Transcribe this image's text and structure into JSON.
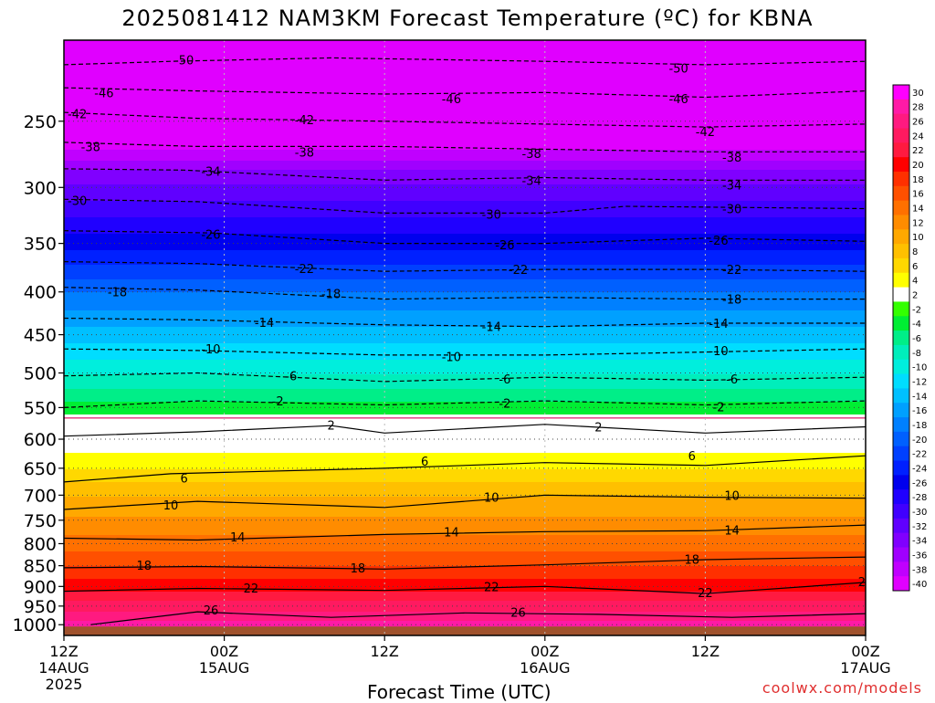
{
  "title": "2025081412 NAM3KM Forecast Temperature (ºC) for KBNA",
  "credit": "coolwx.com/models",
  "chart_data": {
    "type": "heatmap",
    "title": "2025081412 NAM3KM Forecast Temperature (ºC) for KBNA",
    "xlabel": "Forecast Time (UTC)",
    "ylabel": "",
    "y_scale": "log-pressure",
    "ylim": [
      1030,
      200
    ],
    "x_hours": [
      0,
      60
    ],
    "x_ticks": [
      {
        "hour": 0,
        "label": "12Z",
        "sub": "14AUG",
        "sub2": "2025"
      },
      {
        "hour": 12,
        "label": "00Z",
        "sub": "15AUG",
        "sub2": ""
      },
      {
        "hour": 24,
        "label": "12Z",
        "sub": "",
        "sub2": ""
      },
      {
        "hour": 36,
        "label": "00Z",
        "sub": "16AUG",
        "sub2": ""
      },
      {
        "hour": 48,
        "label": "12Z",
        "sub": "",
        "sub2": ""
      },
      {
        "hour": 60,
        "label": "00Z",
        "sub": "17AUG",
        "sub2": ""
      }
    ],
    "y_ticks": [
      250,
      300,
      350,
      400,
      450,
      500,
      550,
      600,
      650,
      700,
      750,
      800,
      850,
      900,
      950,
      1000
    ],
    "ground_pressure": 1005,
    "temperature_profile": [
      {
        "p": 200,
        "t": -55
      },
      {
        "p": 220,
        "t": -50
      },
      {
        "p": 240,
        "t": -46
      },
      {
        "p": 250,
        "t": -42
      },
      {
        "p": 270,
        "t": -38
      },
      {
        "p": 285,
        "t": -34
      },
      {
        "p": 310,
        "t": -30
      },
      {
        "p": 340,
        "t": -26
      },
      {
        "p": 370,
        "t": -22
      },
      {
        "p": 400,
        "t": -18
      },
      {
        "p": 440,
        "t": -14
      },
      {
        "p": 480,
        "t": -10
      },
      {
        "p": 520,
        "t": -6
      },
      {
        "p": 560,
        "t": -2
      },
      {
        "p": 590,
        "t": 2
      },
      {
        "p": 650,
        "t": 6
      },
      {
        "p": 700,
        "t": 10
      },
      {
        "p": 780,
        "t": 14
      },
      {
        "p": 850,
        "t": 18
      },
      {
        "p": 910,
        "t": 22
      },
      {
        "p": 960,
        "t": 26
      },
      {
        "p": 1030,
        "t": 31
      }
    ],
    "isotherms": [
      {
        "t": -50,
        "style": "dashed",
        "points": [
          [
            0,
            214
          ],
          [
            8,
            212
          ],
          [
            20,
            210
          ],
          [
            36,
            212
          ],
          [
            48,
            214
          ],
          [
            60,
            212
          ]
        ],
        "labels": [
          [
            9,
            211
          ],
          [
            46,
            216
          ]
        ]
      },
      {
        "t": -46,
        "style": "dashed",
        "points": [
          [
            0,
            228
          ],
          [
            10,
            230
          ],
          [
            24,
            232
          ],
          [
            36,
            231
          ],
          [
            48,
            234
          ],
          [
            60,
            230
          ]
        ],
        "labels": [
          [
            3,
            231
          ],
          [
            29,
            235
          ],
          [
            46,
            235
          ]
        ]
      },
      {
        "t": -42,
        "style": "dashed",
        "points": [
          [
            0,
            244
          ],
          [
            10,
            248
          ],
          [
            24,
            250
          ],
          [
            36,
            252
          ],
          [
            48,
            254
          ],
          [
            60,
            252
          ]
        ],
        "labels": [
          [
            1,
            245
          ],
          [
            18,
            249
          ],
          [
            48,
            257
          ]
        ]
      },
      {
        "t": -38,
        "style": "dashed",
        "points": [
          [
            0,
            265
          ],
          [
            10,
            268
          ],
          [
            24,
            268
          ],
          [
            36,
            270
          ],
          [
            48,
            272
          ],
          [
            60,
            272
          ]
        ],
        "labels": [
          [
            2,
            268
          ],
          [
            18,
            272
          ],
          [
            35,
            273
          ],
          [
            50,
            276
          ]
        ]
      },
      {
        "t": -34,
        "style": "dashed",
        "points": [
          [
            0,
            285
          ],
          [
            9,
            286
          ],
          [
            24,
            294
          ],
          [
            36,
            292
          ],
          [
            48,
            294
          ],
          [
            60,
            294
          ]
        ],
        "labels": [
          [
            11,
            287
          ],
          [
            35,
            294
          ],
          [
            50,
            298
          ]
        ]
      },
      {
        "t": -30,
        "style": "dashed",
        "points": [
          [
            0,
            310
          ],
          [
            10,
            312
          ],
          [
            24,
            322
          ],
          [
            36,
            322
          ],
          [
            42,
            316
          ],
          [
            60,
            318
          ]
        ],
        "labels": [
          [
            1,
            311
          ],
          [
            32,
            323
          ],
          [
            50,
            318
          ]
        ]
      },
      {
        "t": -26,
        "style": "dashed",
        "points": [
          [
            0,
            338
          ],
          [
            11,
            340
          ],
          [
            24,
            350
          ],
          [
            36,
            350
          ],
          [
            48,
            345
          ],
          [
            60,
            348
          ]
        ],
        "labels": [
          [
            11,
            341
          ],
          [
            33,
            351
          ],
          [
            49,
            347
          ]
        ]
      },
      {
        "t": -22,
        "style": "dashed",
        "points": [
          [
            0,
            368
          ],
          [
            10,
            370
          ],
          [
            24,
            378
          ],
          [
            36,
            376
          ],
          [
            48,
            376
          ],
          [
            60,
            378
          ]
        ],
        "labels": [
          [
            18,
            375
          ],
          [
            34,
            376
          ],
          [
            50,
            376
          ]
        ]
      },
      {
        "t": -18,
        "style": "dashed",
        "points": [
          [
            0,
            395
          ],
          [
            10,
            398
          ],
          [
            24,
            408
          ],
          [
            36,
            406
          ],
          [
            48,
            408
          ],
          [
            60,
            408
          ]
        ],
        "labels": [
          [
            4,
            400
          ],
          [
            20,
            402
          ],
          [
            50,
            408
          ]
        ]
      },
      {
        "t": -14,
        "style": "dashed",
        "points": [
          [
            0,
            430
          ],
          [
            10,
            432
          ],
          [
            24,
            438
          ],
          [
            36,
            440
          ],
          [
            48,
            436
          ],
          [
            60,
            436
          ]
        ],
        "labels": [
          [
            15,
            435
          ],
          [
            32,
            440
          ],
          [
            49,
            436
          ]
        ]
      },
      {
        "t": -10,
        "style": "dashed",
        "points": [
          [
            0,
            468
          ],
          [
            10,
            470
          ],
          [
            24,
            476
          ],
          [
            36,
            476
          ],
          [
            48,
            472
          ],
          [
            60,
            468
          ]
        ],
        "labels": [
          [
            11,
            468
          ],
          [
            29,
            478
          ],
          [
            49,
            470
          ]
        ]
      },
      {
        "t": -6,
        "style": "dashed",
        "points": [
          [
            0,
            504
          ],
          [
            10,
            500
          ],
          [
            24,
            512
          ],
          [
            36,
            506
          ],
          [
            48,
            510
          ],
          [
            60,
            506
          ]
        ],
        "labels": [
          [
            17,
            504
          ],
          [
            33,
            508
          ],
          [
            50,
            508
          ]
        ]
      },
      {
        "t": -2,
        "style": "dashed",
        "points": [
          [
            0,
            550
          ],
          [
            10,
            540
          ],
          [
            24,
            546
          ],
          [
            36,
            540
          ],
          [
            48,
            546
          ],
          [
            60,
            540
          ]
        ],
        "labels": [
          [
            16,
            540
          ],
          [
            33,
            543
          ],
          [
            49,
            549
          ]
        ]
      },
      {
        "t": 2,
        "style": "solid",
        "points": [
          [
            0,
            595
          ],
          [
            10,
            588
          ],
          [
            20,
            578
          ],
          [
            24,
            590
          ],
          [
            36,
            576
          ],
          [
            48,
            590
          ],
          [
            60,
            580
          ]
        ],
        "labels": [
          [
            20,
            577
          ],
          [
            40,
            580
          ]
        ]
      },
      {
        "t": 6,
        "style": "solid",
        "points": [
          [
            0,
            675
          ],
          [
            8,
            660
          ],
          [
            24,
            650
          ],
          [
            36,
            640
          ],
          [
            48,
            645
          ],
          [
            60,
            628
          ]
        ],
        "labels": [
          [
            9,
            668
          ],
          [
            27,
            637
          ],
          [
            47,
            628
          ]
        ]
      },
      {
        "t": 10,
        "style": "solid",
        "points": [
          [
            0,
            728
          ],
          [
            10,
            712
          ],
          [
            24,
            724
          ],
          [
            36,
            700
          ],
          [
            48,
            704
          ],
          [
            60,
            706
          ]
        ],
        "labels": [
          [
            8,
            719
          ],
          [
            32,
            704
          ],
          [
            50,
            700
          ]
        ]
      },
      {
        "t": 14,
        "style": "solid",
        "points": [
          [
            0,
            788
          ],
          [
            10,
            792
          ],
          [
            24,
            780
          ],
          [
            36,
            774
          ],
          [
            48,
            772
          ],
          [
            60,
            760
          ]
        ],
        "labels": [
          [
            13,
            785
          ],
          [
            29,
            774
          ],
          [
            50,
            770
          ]
        ]
      },
      {
        "t": 18,
        "style": "solid",
        "points": [
          [
            0,
            855
          ],
          [
            10,
            852
          ],
          [
            24,
            858
          ],
          [
            36,
            848
          ],
          [
            48,
            836
          ],
          [
            60,
            830
          ]
        ],
        "labels": [
          [
            6,
            849
          ],
          [
            22,
            855
          ],
          [
            47,
            835
          ]
        ]
      },
      {
        "t": 22,
        "style": "solid",
        "points": [
          [
            0,
            912
          ],
          [
            10,
            905
          ],
          [
            24,
            910
          ],
          [
            36,
            900
          ],
          [
            48,
            918
          ],
          [
            60,
            890
          ]
        ],
        "labels": [
          [
            14,
            904
          ],
          [
            32,
            900
          ],
          [
            48,
            915
          ],
          [
            60,
            888
          ]
        ]
      },
      {
        "t": 26,
        "style": "solid",
        "points": [
          [
            2,
            1000
          ],
          [
            10,
            965
          ],
          [
            20,
            980
          ],
          [
            30,
            968
          ],
          [
            40,
            972
          ],
          [
            50,
            980
          ],
          [
            60,
            970
          ]
        ],
        "labels": [
          [
            11,
            960
          ],
          [
            34,
            966
          ]
        ]
      }
    ],
    "colorbar": {
      "labels": [
        30,
        28,
        26,
        24,
        22,
        20,
        18,
        16,
        14,
        12,
        10,
        8,
        6,
        4,
        2,
        -2,
        -4,
        -6,
        -8,
        -10,
        -12,
        -14,
        -16,
        -18,
        -20,
        -22,
        -24,
        -26,
        -28,
        -30,
        -32,
        -34,
        -36,
        -38,
        -40
      ],
      "colors": [
        "#ff00ff",
        "#ff1aa6",
        "#ff1a80",
        "#ff1a60",
        "#ff1a40",
        "#ff0000",
        "#ff3000",
        "#ff5000",
        "#ff7000",
        "#ff8c00",
        "#ffa800",
        "#ffc000",
        "#ffd800",
        "#ffff00",
        "#ffffff",
        "#33ff00",
        "#00ee33",
        "#00ee88",
        "#00eebb",
        "#00eedd",
        "#00ddff",
        "#00c0ff",
        "#00a0ff",
        "#0080ff",
        "#0060ff",
        "#0040ff",
        "#0020ff",
        "#0000ee",
        "#2000ff",
        "#4000ff",
        "#6000ff",
        "#8000ff",
        "#a000ff",
        "#c000ff",
        "#e000ff"
      ]
    }
  }
}
